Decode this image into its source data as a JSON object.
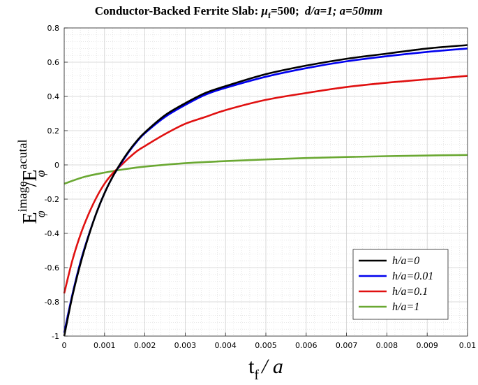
{
  "chart_data": {
    "type": "line",
    "title_parts": {
      "main": "Conductor-Backed Ferrite Slab: ",
      "mu": "μ",
      "mu_sub": "f",
      "mu_val": "=500;",
      "params": "d/a=1;  a=50mm"
    },
    "xlabel_parts": {
      "t": "t",
      "sub": "f",
      "rest": "/ a"
    },
    "ylabel_parts": {
      "E": "E",
      "sup1": "image",
      "sub1": "φ",
      "slash": "/E",
      "sup2": "acutal",
      "sub2": "φ"
    },
    "xlim": [
      0,
      0.01
    ],
    "ylim": [
      -1,
      0.8
    ],
    "x_ticks": [
      0,
      0.001,
      0.002,
      0.003,
      0.004,
      0.005,
      0.006,
      0.007,
      0.008,
      0.009,
      0.01
    ],
    "x_tick_labels": [
      "0",
      "0.001",
      "0.002",
      "0.003",
      "0.004",
      "0.005",
      "0.006",
      "0.007",
      "0.008",
      "0.009",
      "0.01"
    ],
    "y_ticks": [
      -1,
      -0.8,
      -0.6,
      -0.4,
      -0.2,
      0,
      0.2,
      0.4,
      0.6,
      0.8
    ],
    "y_tick_labels": [
      "-1",
      "-0.8",
      "-0.6",
      "-0.4",
      "-0.2",
      "0",
      "0.2",
      "0.4",
      "0.6",
      "0.8"
    ],
    "grid": true,
    "minor_grid": true,
    "legend_position": "lower-right",
    "series": [
      {
        "name": "h/a=0",
        "color": "#000000",
        "x": [
          0,
          0.0002,
          0.0004,
          0.0006,
          0.0008,
          0.001,
          0.0012,
          0.0014,
          0.0016,
          0.0018,
          0.002,
          0.0025,
          0.003,
          0.0035,
          0.004,
          0.005,
          0.006,
          0.007,
          0.008,
          0.009,
          0.01
        ],
        "y": [
          -1.0,
          -0.77,
          -0.58,
          -0.42,
          -0.28,
          -0.165,
          -0.07,
          0.01,
          0.08,
          0.14,
          0.19,
          0.29,
          0.36,
          0.42,
          0.46,
          0.53,
          0.58,
          0.62,
          0.65,
          0.68,
          0.7
        ]
      },
      {
        "name": "h/a=0.01",
        "color": "#0000ee",
        "x": [
          0,
          0.0002,
          0.0004,
          0.0006,
          0.0008,
          0.001,
          0.0012,
          0.0014,
          0.0016,
          0.0018,
          0.002,
          0.0025,
          0.003,
          0.0035,
          0.004,
          0.005,
          0.006,
          0.007,
          0.008,
          0.009,
          0.01
        ],
        "y": [
          -0.98,
          -0.76,
          -0.57,
          -0.415,
          -0.28,
          -0.165,
          -0.07,
          0.005,
          0.075,
          0.135,
          0.185,
          0.28,
          0.35,
          0.41,
          0.45,
          0.515,
          0.565,
          0.605,
          0.635,
          0.66,
          0.68
        ]
      },
      {
        "name": "h/a=0.1",
        "color": "#e01010",
        "x": [
          0,
          0.0002,
          0.0004,
          0.0006,
          0.0008,
          0.001,
          0.0012,
          0.0014,
          0.0016,
          0.0018,
          0.002,
          0.0025,
          0.003,
          0.0035,
          0.004,
          0.005,
          0.006,
          0.007,
          0.008,
          0.009,
          0.01
        ],
        "y": [
          -0.75,
          -0.56,
          -0.41,
          -0.29,
          -0.19,
          -0.11,
          -0.05,
          -0.005,
          0.04,
          0.08,
          0.11,
          0.18,
          0.24,
          0.28,
          0.32,
          0.38,
          0.42,
          0.455,
          0.48,
          0.5,
          0.52
        ]
      },
      {
        "name": "h/a=1",
        "color": "#6aa832",
        "x": [
          0,
          0.0005,
          0.001,
          0.0015,
          0.002,
          0.003,
          0.004,
          0.005,
          0.006,
          0.007,
          0.008,
          0.009,
          0.01
        ],
        "y": [
          -0.11,
          -0.07,
          -0.045,
          -0.025,
          -0.01,
          0.01,
          0.022,
          0.032,
          0.04,
          0.046,
          0.051,
          0.055,
          0.058
        ]
      }
    ]
  }
}
